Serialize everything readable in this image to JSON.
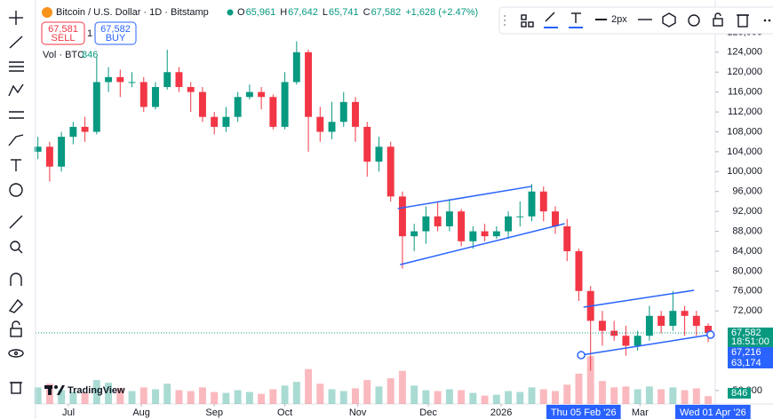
{
  "chart_data": {
    "type": "candlestick",
    "title": "Bitcoin / U.S. Dollar · 1D · Bitstamp",
    "ohlc_labels": [
      {
        "k": "O",
        "v": "65,961"
      },
      {
        "k": "H",
        "v": "67,642"
      },
      {
        "k": "L",
        "v": "65,741"
      },
      {
        "k": "C",
        "v": "67,582"
      }
    ],
    "change": "+1,628 (+2.47%)",
    "sell": {
      "price": "67,581",
      "label": "SELL"
    },
    "spread": "1",
    "buy": {
      "price": "67,582",
      "label": "BUY"
    },
    "volume_legend": "Vol · BTC",
    "logo": "TradingView",
    "x": [
      "2025-06-18",
      "2025-06-23",
      "2025-06-28",
      "2025-07-03",
      "2025-07-08",
      "2025-07-13",
      "2025-07-18",
      "2025-07-23",
      "2025-07-28",
      "2025-08-02",
      "2025-08-07",
      "2025-08-12",
      "2025-08-17",
      "2025-08-22",
      "2025-08-27",
      "2025-09-01",
      "2025-09-06",
      "2025-09-11",
      "2025-09-16",
      "2025-09-21",
      "2025-09-26",
      "2025-10-01",
      "2025-10-06",
      "2025-10-11",
      "2025-10-16",
      "2025-10-21",
      "2025-10-26",
      "2025-10-31",
      "2025-11-05",
      "2025-11-10",
      "2025-11-15",
      "2025-11-20",
      "2025-11-25",
      "2025-11-30",
      "2025-12-05",
      "2025-12-10",
      "2025-12-15",
      "2025-12-20",
      "2025-12-25",
      "2025-12-30",
      "2026-01-04",
      "2026-01-09",
      "2026-01-14",
      "2026-01-19",
      "2026-01-24",
      "2026-01-29",
      "2026-02-03",
      "2026-02-08",
      "2026-02-13",
      "2026-02-18",
      "2026-02-23",
      "2026-02-28",
      "2026-03-05",
      "2026-03-10",
      "2026-03-15",
      "2026-03-20",
      "2026-03-25",
      "2026-03-30"
    ],
    "open": [
      104000,
      105000,
      101000,
      107000,
      109000,
      108000,
      118000,
      119000,
      118000,
      118000,
      113000,
      117000,
      120000,
      117000,
      116000,
      111000,
      109000,
      111000,
      115000,
      116000,
      115000,
      109000,
      118000,
      124000,
      111000,
      108000,
      110000,
      114000,
      109000,
      102000,
      105000,
      95000,
      87000,
      88000,
      91000,
      89000,
      92000,
      86000,
      88000,
      87000,
      88000,
      91000,
      91000,
      96000,
      92000,
      89000,
      84000,
      76000,
      70000,
      68000,
      67000,
      65000,
      67000,
      71000,
      69000,
      72000,
      71000,
      69000
    ],
    "high": [
      107000,
      106000,
      108000,
      110000,
      111000,
      123000,
      121000,
      120500,
      120000,
      119000,
      118000,
      124500,
      121000,
      118000,
      117000,
      112000,
      113000,
      116000,
      117500,
      117000,
      115500,
      120000,
      126200,
      124500,
      113000,
      114000,
      116000,
      115000,
      110000,
      107000,
      106000,
      96000,
      89500,
      93000,
      94000,
      94500,
      92500,
      89000,
      89500,
      89000,
      92000,
      94000,
      97500,
      97000,
      93000,
      90500,
      84500,
      77000,
      72000,
      70000,
      69000,
      68000,
      73000,
      72000,
      76000,
      73000,
      72000,
      69500
    ],
    "low": [
      102500,
      98000,
      100000,
      105500,
      106000,
      107500,
      116000,
      115000,
      117000,
      112000,
      112500,
      116500,
      116000,
      112000,
      110000,
      107500,
      108000,
      110000,
      114500,
      112500,
      108500,
      108500,
      117500,
      104000,
      106000,
      106500,
      109000,
      106000,
      99000,
      100000,
      94000,
      80500,
      84000,
      85500,
      88000,
      88000,
      85000,
      84500,
      86000,
      86500,
      86500,
      89000,
      90000,
      90000,
      87500,
      82000,
      74000,
      60000,
      65000,
      66000,
      63000,
      64000,
      66000,
      67500,
      68000,
      67000,
      67000,
      65700
    ],
    "close": [
      105000,
      101000,
      107000,
      109000,
      108000,
      118000,
      119000,
      118000,
      118000,
      113000,
      117000,
      120000,
      117000,
      116000,
      111000,
      109000,
      111000,
      115000,
      116000,
      115000,
      109000,
      118000,
      124000,
      111000,
      108000,
      110000,
      114000,
      109000,
      102000,
      105000,
      95000,
      87000,
      88000,
      91000,
      89000,
      92000,
      86000,
      88000,
      87000,
      88000,
      91000,
      91000,
      96000,
      92000,
      89000,
      84000,
      76000,
      70000,
      68000,
      67000,
      65000,
      67000,
      71000,
      69000,
      72000,
      71000,
      69000,
      67582
    ],
    "volume": [
      1800,
      2200,
      1500,
      1300,
      1200,
      2600,
      2300,
      1700,
      1400,
      1800,
      1600,
      2200,
      1500,
      1400,
      1800,
      1300,
      1200,
      1500,
      1300,
      1100,
      1600,
      2000,
      2400,
      3800,
      2200,
      1600,
      1400,
      1700,
      2600,
      1900,
      2800,
      3600,
      2000,
      1500,
      1400,
      1600,
      1500,
      1200,
      900,
      1000,
      1400,
      1300,
      1800,
      1600,
      1400,
      2100,
      3300,
      5200,
      2500,
      1800,
      1900,
      1600,
      1900,
      1600,
      1800,
      1500,
      1700,
      846
    ],
    "volume_lim": [
      0,
      6000
    ],
    "colors": {
      "up": "#089981",
      "down": "#f23645"
    },
    "xlim": [
      "2025-06-17",
      "2026-04-02"
    ],
    "xticks": [
      {
        "value": "2025-07-01",
        "label": "Jul"
      },
      {
        "value": "2025-08-01",
        "label": "Aug"
      },
      {
        "value": "2025-09-01",
        "label": "Sep"
      },
      {
        "value": "2025-10-01",
        "label": "Oct"
      },
      {
        "value": "2025-11-01",
        "label": "Nov"
      },
      {
        "value": "2025-12-01",
        "label": "Dec"
      },
      {
        "value": "2026-01-01",
        "label": "2026"
      },
      {
        "value": "2026-03-01",
        "label": "Mar"
      }
    ],
    "x_markers": [
      {
        "value": "2026-02-05",
        "label": "Thu 05 Feb '26"
      },
      {
        "value": "2026-04-01",
        "label": "Wed 01 Apr '26"
      }
    ],
    "ylim": [
      53300,
      134500
    ],
    "yticks": [
      {
        "value": 56000,
        "label": "56,000"
      },
      {
        "value": 72000,
        "label": "72,000"
      },
      {
        "value": 76000,
        "label": "76,000"
      },
      {
        "value": 80000,
        "label": "80,000"
      },
      {
        "value": 84000,
        "label": "84,000"
      },
      {
        "value": 88000,
        "label": "88,000"
      },
      {
        "value": 92000,
        "label": "92,000"
      },
      {
        "value": 96000,
        "label": "96,000"
      },
      {
        "value": 100000,
        "label": "100,000"
      },
      {
        "value": 104000,
        "label": "104,000"
      },
      {
        "value": 108000,
        "label": "108,000"
      },
      {
        "value": 112000,
        "label": "112,000"
      },
      {
        "value": 116000,
        "label": "116,000"
      },
      {
        "value": 120000,
        "label": "120,000"
      },
      {
        "value": 124000,
        "label": "124,000"
      },
      {
        "value": 128000,
        "label": "128,000"
      }
    ],
    "price_labels": [
      {
        "value": 67582,
        "label": "67,582",
        "sub": "18:51:00",
        "color": "#089981"
      },
      {
        "value": 67216,
        "label": "67,216",
        "color": "#2962ff"
      },
      {
        "value": 63174,
        "label": "63,174",
        "color": "#2962ff"
      }
    ],
    "drawings": [
      {
        "x": [
          "2025-11-18",
          "2026-01-14"
        ],
        "y": [
          92571,
          97036
        ],
        "color": "#2962ff"
      },
      {
        "x": [
          "2025-11-19",
          "2026-01-28"
        ],
        "y": [
          81300,
          89536
        ],
        "color": "#2962ff"
      },
      {
        "x": [
          "2026-02-05",
          "2026-03-24"
        ],
        "y": [
          72750,
          76143
        ],
        "color": "#2962ff"
      },
      {
        "x": [
          "2026-02-04",
          "2026-03-31"
        ],
        "y": [
          63107,
          67214
        ],
        "color": "#2962ff",
        "handles": true
      }
    ]
  },
  "toolbar": {
    "width_label": "2px"
  }
}
